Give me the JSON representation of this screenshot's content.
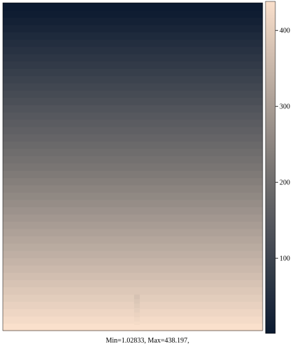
{
  "caption": "Min=1.02833, Max=438.197,",
  "chart_data": {
    "type": "heatmap",
    "title": "",
    "xlabel": "",
    "ylabel": "",
    "value_min": 1.02833,
    "value_max": 438.197,
    "color_scale": {
      "low_color": "#0b1a30",
      "mid_color": "#7a7674",
      "high_color": "#fae0cc",
      "colorbar_ticks": [
        100,
        200,
        300,
        400
      ],
      "colorbar_range": [
        1.02833,
        438.197
      ]
    },
    "pattern": "values decrease smoothly from bottom to top in horizontal bands; a narrow bright column appears near the bottom center",
    "row_values_bottom_to_top": [
      438.197,
      428,
      418,
      408,
      398,
      388,
      378,
      368,
      358,
      348,
      338,
      328,
      318,
      308,
      298,
      288,
      278,
      268,
      258,
      248,
      238,
      228,
      218,
      208,
      198,
      188,
      178,
      168,
      158,
      148,
      138,
      128,
      118,
      108,
      98,
      88,
      78,
      68,
      58,
      48,
      38,
      28,
      18,
      8,
      1.02833
    ],
    "hot_column": {
      "value_peak": 438.197
    }
  },
  "colors": {
    "background": "#ffffff",
    "axis": "#000000"
  }
}
